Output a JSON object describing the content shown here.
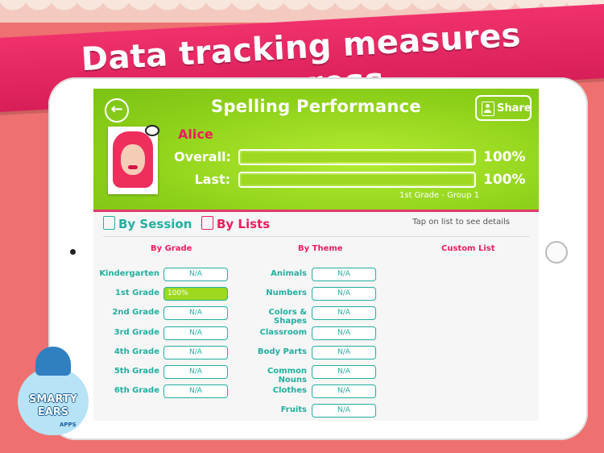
{
  "banner": {
    "text": "Data tracking measures progress"
  },
  "header": {
    "title": "Spelling Performance",
    "share_label": "Share",
    "student_name": "Alice",
    "overall_label": "Overall:",
    "overall_value": "100%",
    "overall_fraction": 1.0,
    "last_label": "Last:",
    "last_value": "100%",
    "last_fraction": 1.0,
    "group": "1st Grade - Group 1"
  },
  "tabs": [
    {
      "label": "By Session",
      "icon": "person-icon"
    },
    {
      "label": "By Lists",
      "icon": "list-icon"
    }
  ],
  "hint": "Tap on list to see details",
  "columns": {
    "by_grade": "By Grade",
    "by_theme": "By Theme",
    "custom_list": "Custom List"
  },
  "grade_items": [
    {
      "label": "Kindergarten",
      "value": "N/A"
    },
    {
      "label": "1st Grade",
      "value": "100%"
    },
    {
      "label": "2nd Grade",
      "value": "N/A"
    },
    {
      "label": "3rd Grade",
      "value": "N/A"
    },
    {
      "label": "4th Grade",
      "value": "N/A"
    },
    {
      "label": "5th Grade",
      "value": "N/A"
    },
    {
      "label": "6th Grade",
      "value": "N/A"
    }
  ],
  "theme_items": [
    {
      "label": "Animals",
      "value": "N/A"
    },
    {
      "label": "Numbers",
      "value": "N/A"
    },
    {
      "label": "Colors & Shapes",
      "value": "N/A"
    },
    {
      "label": "Classroom",
      "value": "N/A"
    },
    {
      "label": "Body Parts",
      "value": "N/A"
    },
    {
      "label": "Common Nouns",
      "value": "N/A"
    },
    {
      "label": "Clothes",
      "value": "N/A"
    },
    {
      "label": "Fruits",
      "value": "N/A"
    }
  ],
  "logo": {
    "line1": "SMARTY",
    "line2": "EARS",
    "line3": "APPS"
  },
  "colors": {
    "accent_pink": "#ee1d5d",
    "header_green": "#8ed11a",
    "teal": "#23aea0"
  }
}
